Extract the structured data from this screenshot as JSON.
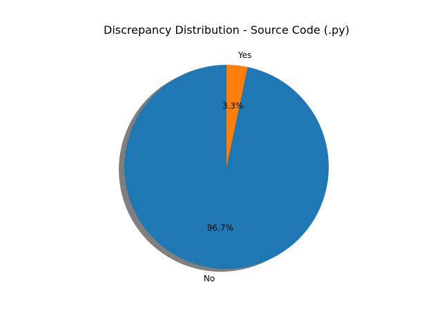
{
  "chart_data": {
    "type": "pie",
    "title": "Discrepancy Distribution - Source Code (.py)",
    "categories": [
      "No",
      "Yes"
    ],
    "values": [
      96.7,
      3.3
    ],
    "percent_labels": [
      "96.7%",
      "3.3%"
    ],
    "colors": [
      "#1f77b4",
      "#ff7f0e"
    ],
    "start_angle_deg": 90,
    "shadow": true,
    "legend": "none"
  }
}
